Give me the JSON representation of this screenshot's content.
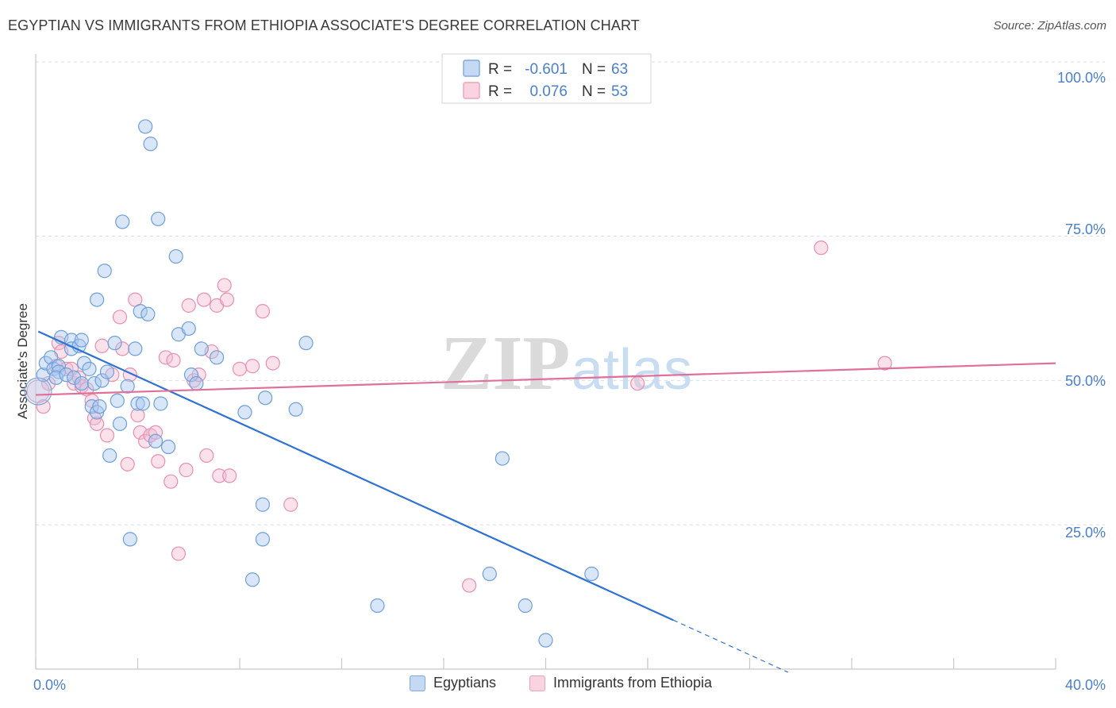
{
  "title": "EGYPTIAN VS IMMIGRANTS FROM ETHIOPIA ASSOCIATE'S DEGREE CORRELATION CHART",
  "source": "Source: ZipAtlas.com",
  "watermark": {
    "zip": "ZIP",
    "atlas": "atlas"
  },
  "colors": {
    "blue_fill": "#a9c8ef",
    "blue_stroke": "#6e9fdc",
    "blue_line": "#2f72d3",
    "pink_fill": "#f5bdd0",
    "pink_stroke": "#e98fb0",
    "pink_line": "#e0709a",
    "axis_label": "#4a7fd0",
    "grid": "#dddddd"
  },
  "chart_data": {
    "type": "scatter",
    "title": "EGYPTIAN VS IMMIGRANTS FROM ETHIOPIA ASSOCIATE'S DEGREE CORRELATION CHART",
    "xlabel": "",
    "ylabel": "Associate's Degree",
    "xlim": [
      0,
      40
    ],
    "ylim": [
      0,
      100
    ],
    "x_tick_labels": [
      "0.0%",
      "40.0%"
    ],
    "y_tick_labels": [
      "100.0%",
      "75.0%",
      "50.0%",
      "25.0%"
    ],
    "y_tick_values": [
      100,
      75,
      50,
      25
    ],
    "legend": [
      {
        "label": "R = ",
        "r": "-0.601",
        "n_label": "N = ",
        "n": "63",
        "series": "Egyptians"
      },
      {
        "label": "R = ",
        "r": "0.076",
        "n_label": "N = ",
        "n": "53",
        "series": "Immigrants from Ethiopia"
      }
    ],
    "series": [
      {
        "name": "Egyptians",
        "color": "#6e9fdc",
        "trend": {
          "x0": 0.1,
          "y0": 58.5,
          "x1": 25.0,
          "y1": 8.5,
          "dash_to_x": 29.5
        },
        "points": [
          [
            0.3,
            51
          ],
          [
            0.4,
            53
          ],
          [
            0.6,
            54
          ],
          [
            0.7,
            52
          ],
          [
            0.9,
            52.5
          ],
          [
            0.9,
            51.5
          ],
          [
            0.8,
            50.5
          ],
          [
            1.0,
            57.5
          ],
          [
            1.2,
            51
          ],
          [
            1.4,
            57
          ],
          [
            1.4,
            55.5
          ],
          [
            1.5,
            50.5
          ],
          [
            1.7,
            56
          ],
          [
            1.8,
            57
          ],
          [
            1.8,
            49.5
          ],
          [
            1.9,
            53
          ],
          [
            2.1,
            52
          ],
          [
            2.2,
            45.5
          ],
          [
            2.3,
            49.5
          ],
          [
            2.4,
            64
          ],
          [
            2.4,
            44.5
          ],
          [
            2.5,
            45.5
          ],
          [
            2.6,
            50
          ],
          [
            2.7,
            69
          ],
          [
            2.8,
            51.5
          ],
          [
            2.9,
            37
          ],
          [
            3.1,
            56.5
          ],
          [
            3.2,
            46.5
          ],
          [
            3.3,
            42.5
          ],
          [
            3.4,
            77.5
          ],
          [
            3.6,
            49
          ],
          [
            3.7,
            22.5
          ],
          [
            3.9,
            55.5
          ],
          [
            4.0,
            46
          ],
          [
            4.1,
            62
          ],
          [
            4.2,
            46
          ],
          [
            4.3,
            94
          ],
          [
            4.4,
            61.5
          ],
          [
            4.5,
            91
          ],
          [
            4.7,
            39.5
          ],
          [
            4.8,
            78
          ],
          [
            4.9,
            46
          ],
          [
            5.2,
            38.5
          ],
          [
            5.5,
            71.5
          ],
          [
            5.6,
            58
          ],
          [
            6.0,
            59
          ],
          [
            6.1,
            51
          ],
          [
            6.3,
            49.5
          ],
          [
            6.5,
            55.5
          ],
          [
            7.1,
            54
          ],
          [
            8.2,
            44.5
          ],
          [
            8.9,
            28.5
          ],
          [
            8.9,
            22.5
          ],
          [
            9.0,
            47
          ],
          [
            8.5,
            15.5
          ],
          [
            10.2,
            45
          ],
          [
            10.6,
            56.5
          ],
          [
            13.4,
            11
          ],
          [
            17.8,
            16.5
          ],
          [
            18.3,
            36.5
          ],
          [
            19.2,
            11
          ],
          [
            20.0,
            5
          ],
          [
            21.8,
            16.5
          ]
        ]
      },
      {
        "name": "Immigrants from Ethiopia",
        "color": "#e98fb0",
        "trend": {
          "x0": 0.0,
          "y0": 47.5,
          "x1": 40.0,
          "y1": 53.0
        },
        "points": [
          [
            0.3,
            45.5
          ],
          [
            0.5,
            49.5
          ],
          [
            0.8,
            52.5
          ],
          [
            0.9,
            56.5
          ],
          [
            1.0,
            55
          ],
          [
            1.2,
            52
          ],
          [
            1.4,
            52
          ],
          [
            1.5,
            49.5
          ],
          [
            1.7,
            50.5
          ],
          [
            1.8,
            49
          ],
          [
            2.0,
            48.5
          ],
          [
            2.2,
            46.5
          ],
          [
            2.3,
            43.5
          ],
          [
            2.4,
            42.5
          ],
          [
            2.6,
            56
          ],
          [
            2.8,
            40.5
          ],
          [
            3.0,
            51
          ],
          [
            3.3,
            61
          ],
          [
            3.4,
            55.5
          ],
          [
            3.6,
            35.5
          ],
          [
            3.7,
            51
          ],
          [
            3.9,
            64
          ],
          [
            4.0,
            44
          ],
          [
            4.1,
            41
          ],
          [
            4.3,
            39.5
          ],
          [
            4.5,
            40.5
          ],
          [
            4.7,
            41
          ],
          [
            4.8,
            36
          ],
          [
            5.1,
            54
          ],
          [
            5.3,
            32.5
          ],
          [
            5.4,
            53.5
          ],
          [
            5.6,
            20
          ],
          [
            5.9,
            34.5
          ],
          [
            6.0,
            63
          ],
          [
            6.2,
            50
          ],
          [
            6.4,
            51
          ],
          [
            6.6,
            64
          ],
          [
            6.7,
            37
          ],
          [
            6.9,
            55
          ],
          [
            7.1,
            63
          ],
          [
            7.2,
            33.5
          ],
          [
            7.4,
            66.5
          ],
          [
            7.5,
            64
          ],
          [
            7.6,
            33.5
          ],
          [
            8.0,
            52
          ],
          [
            8.5,
            52.5
          ],
          [
            8.9,
            62
          ],
          [
            9.3,
            53
          ],
          [
            10.0,
            28.5
          ],
          [
            17.0,
            14.5
          ],
          [
            23.6,
            49.5
          ],
          [
            30.8,
            73
          ],
          [
            33.3,
            53
          ]
        ]
      }
    ]
  },
  "bottom_legend": {
    "egyptians": "Egyptians",
    "ethiopia": "Immigrants from Ethiopia"
  }
}
